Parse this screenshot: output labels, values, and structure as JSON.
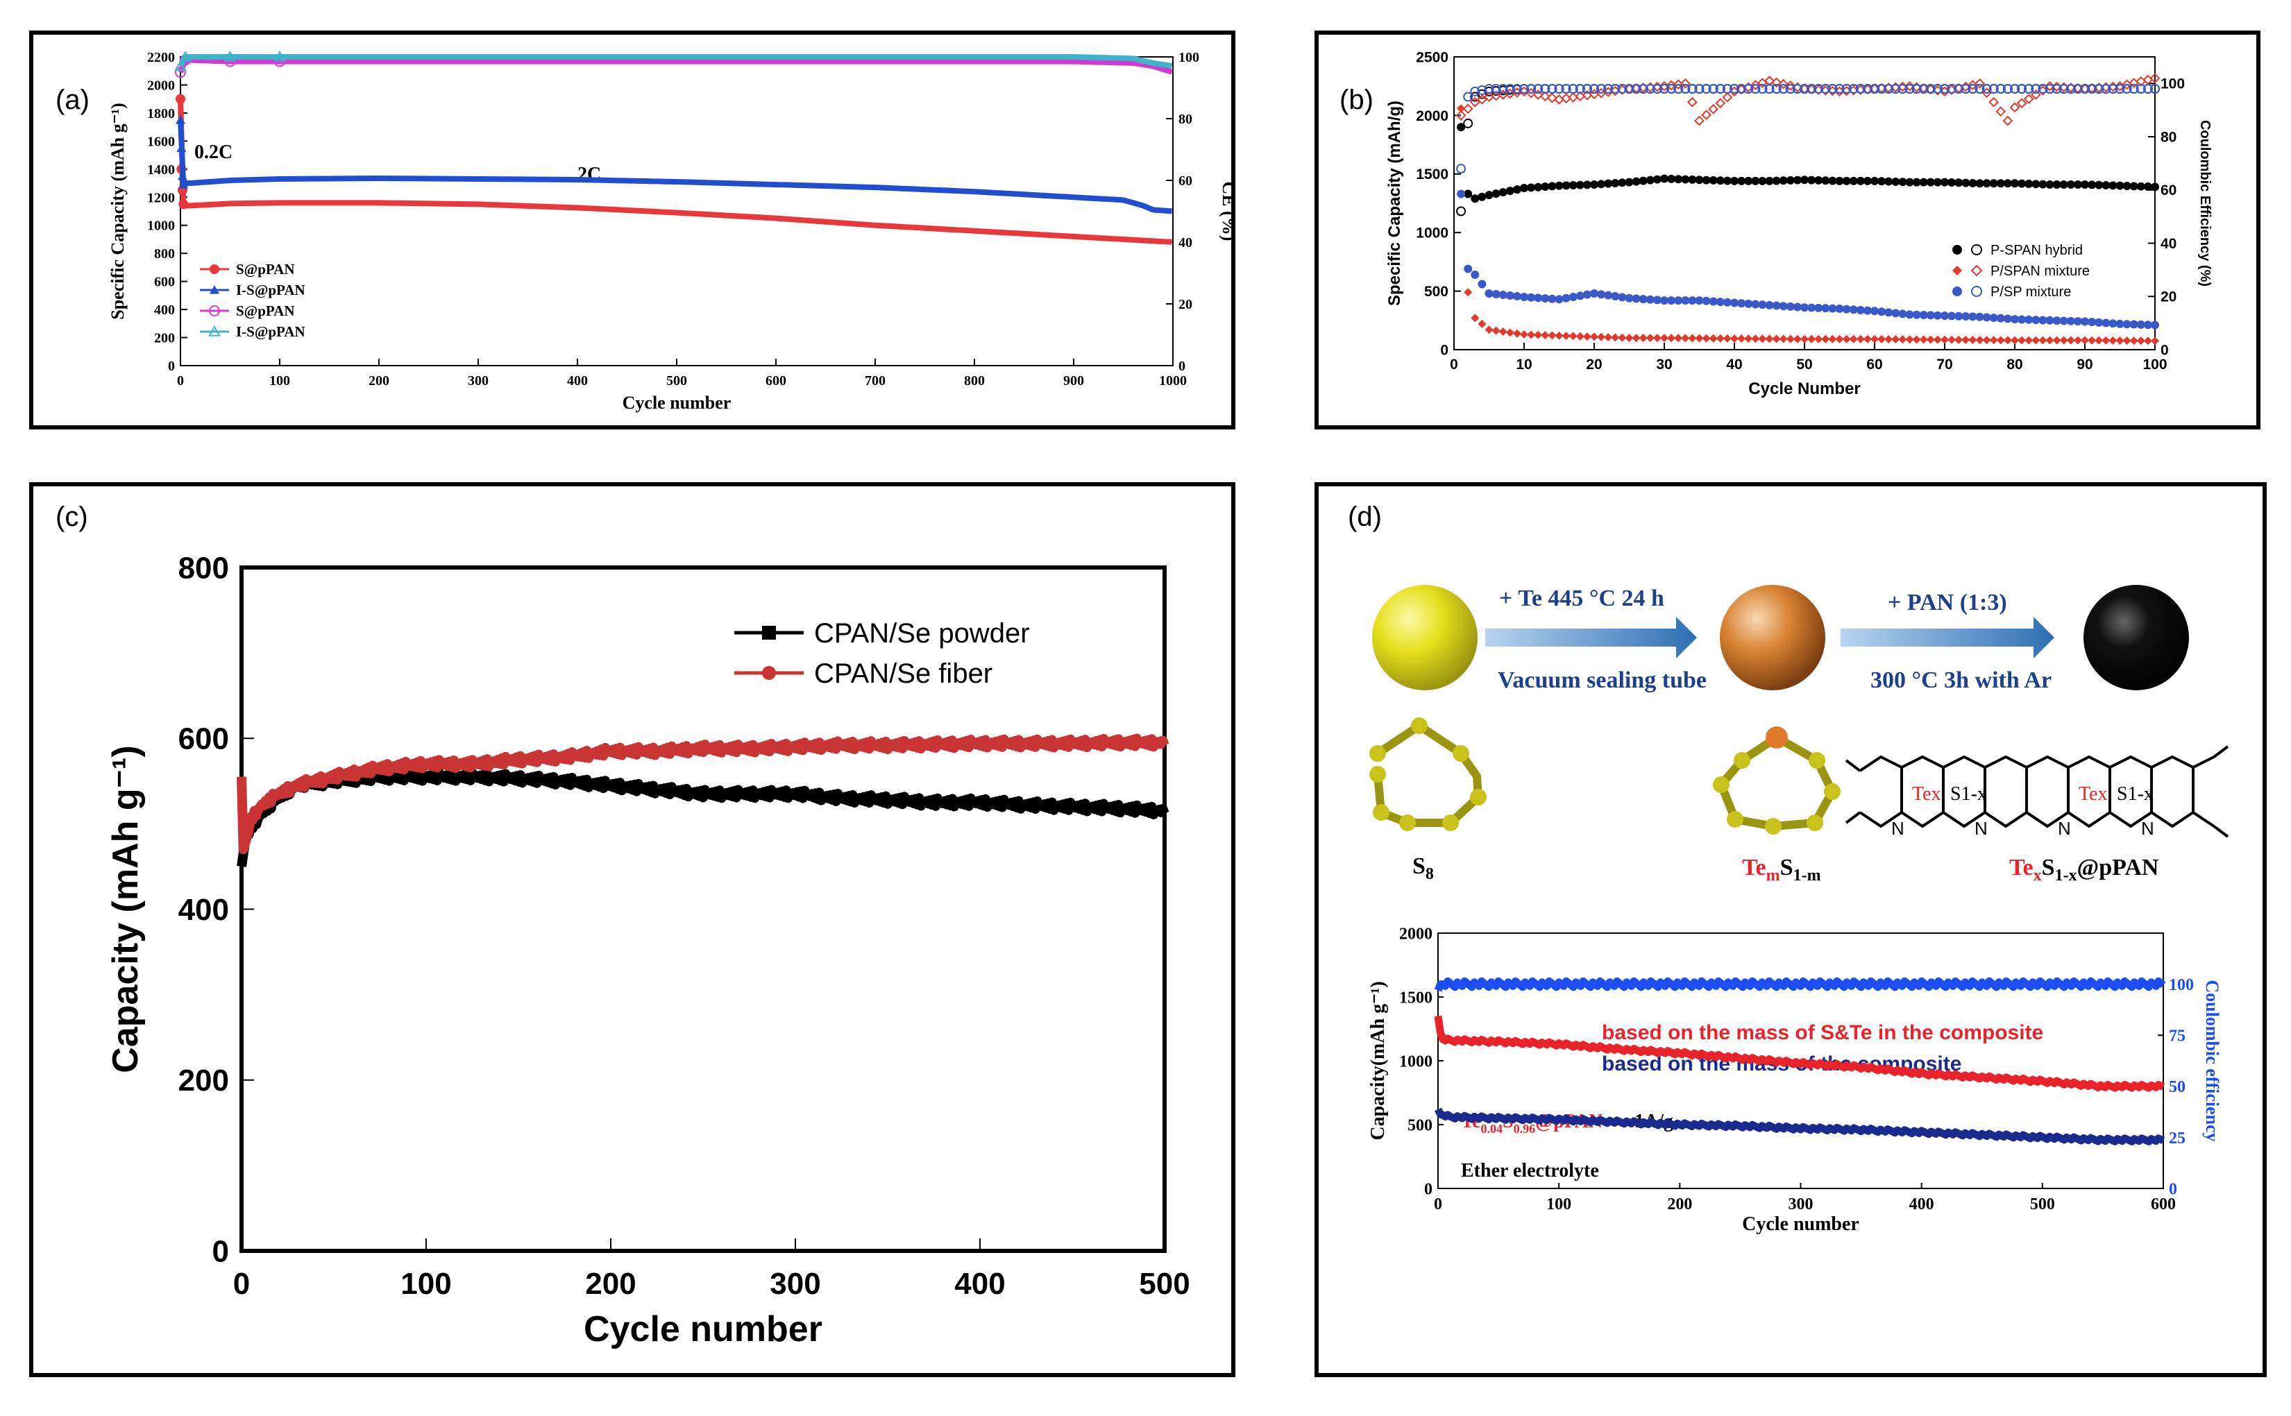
{
  "panels": {
    "a": {
      "tag": "(a)"
    },
    "b": {
      "tag": "(b)"
    },
    "c": {
      "tag": "(c)"
    },
    "d": {
      "tag": "(d)"
    }
  },
  "chart_data": [
    {
      "id": "a",
      "type": "line",
      "xlabel": "Cycle number",
      "ylabel": "Specific Capacity (mAh g⁻¹)",
      "y2label": "CE (%)",
      "xlim": [
        0,
        1000
      ],
      "ylim": [
        0,
        2200
      ],
      "y2lim": [
        0,
        100
      ],
      "xticks": [
        "0",
        "100",
        "200",
        "300",
        "400",
        "500",
        "600",
        "700",
        "800",
        "900",
        "1000"
      ],
      "yticks": [
        "0",
        "200",
        "400",
        "600",
        "800",
        "1000",
        "1200",
        "1400",
        "1600",
        "1800",
        "2000",
        "2200"
      ],
      "y2ticks": [
        "0",
        "20",
        "40",
        "60",
        "80",
        "100"
      ],
      "annotations": [
        "0.2C",
        "2C"
      ],
      "legend_position": "bottom-left",
      "series": [
        {
          "name": "S@pPAN",
          "axis": "left",
          "color": "#e8383b",
          "marker": "circle-filled",
          "x": [
            0,
            1,
            2,
            3,
            5,
            10,
            50,
            100,
            200,
            300,
            400,
            500,
            600,
            700,
            800,
            900,
            950,
            1000
          ],
          "y": [
            1900,
            1400,
            1250,
            1150,
            1140,
            1140,
            1155,
            1160,
            1160,
            1150,
            1125,
            1090,
            1050,
            1000,
            960,
            920,
            900,
            880
          ]
        },
        {
          "name": "I-S@pPAN",
          "axis": "left",
          "color": "#1f4ecf",
          "marker": "triangle-filled",
          "x": [
            0,
            1,
            2,
            3,
            5,
            10,
            50,
            100,
            200,
            300,
            400,
            500,
            600,
            700,
            800,
            900,
            950,
            970,
            980,
            1000
          ],
          "y": [
            1750,
            1550,
            1350,
            1290,
            1300,
            1300,
            1320,
            1330,
            1335,
            1330,
            1325,
            1310,
            1290,
            1270,
            1240,
            1200,
            1180,
            1140,
            1110,
            1100
          ]
        },
        {
          "name": "S@pPAN",
          "axis": "right",
          "color": "#d23ad2",
          "marker": "circle-open",
          "x": [
            0,
            5,
            50,
            100,
            200,
            300,
            400,
            500,
            600,
            700,
            800,
            900,
            960,
            980,
            1000
          ],
          "y": [
            95,
            99,
            98.5,
            98.5,
            98.5,
            98.5,
            98.5,
            98.5,
            98.5,
            98.5,
            98.5,
            98.5,
            98,
            97,
            95
          ]
        },
        {
          "name": "I-S@pPAN",
          "axis": "right",
          "color": "#3fb3c9",
          "marker": "triangle-open",
          "x": [
            0,
            5,
            50,
            100,
            200,
            300,
            400,
            500,
            600,
            700,
            800,
            900,
            960,
            980,
            1000
          ],
          "y": [
            97,
            100,
            100,
            100,
            100,
            100,
            100,
            100,
            100,
            100,
            100,
            100,
            99.5,
            98,
            97
          ]
        }
      ]
    },
    {
      "id": "b",
      "type": "scatter",
      "xlabel": "Cycle Number",
      "ylabel": "Specific Capacity (mAh/g)",
      "y2label": "Coulombic Efficiency (%)",
      "xlim": [
        0,
        100
      ],
      "ylim": [
        0,
        2500
      ],
      "y2lim": [
        0,
        110
      ],
      "xticks": [
        "0",
        "10",
        "20",
        "30",
        "40",
        "50",
        "60",
        "70",
        "80",
        "90",
        "100"
      ],
      "yticks": [
        "0",
        "500",
        "1000",
        "1500",
        "2000",
        "2500"
      ],
      "y2ticks": [
        "0",
        "20",
        "40",
        "60",
        "80",
        "100"
      ],
      "legend_position": "right-middle",
      "series": [
        {
          "name": "P-SPAN hybrid",
          "color": "#000000",
          "capacity": {
            "x": [
              1,
              2,
              3,
              5,
              10,
              15,
              20,
              25,
              30,
              35,
              40,
              45,
              50,
              55,
              60,
              65,
              70,
              75,
              80,
              85,
              90,
              95,
              100
            ],
            "y": [
              1900,
              1330,
              1290,
              1320,
              1380,
              1400,
              1410,
              1430,
              1460,
              1450,
              1440,
              1440,
              1450,
              1440,
              1440,
              1430,
              1430,
              1420,
              1420,
              1410,
              1410,
              1400,
              1390
            ]
          },
          "ce": {
            "x": [
              1,
              2,
              3,
              5,
              10,
              20,
              30,
              40,
              50,
              60,
              70,
              80,
              90,
              100
            ],
            "y": [
              52,
              85,
              95,
              97,
              98,
              98,
              98,
              98,
              98,
              98,
              98,
              98,
              98,
              98
            ]
          }
        },
        {
          "name": "P/SPAN mixture",
          "color": "#e23a2a",
          "capacity": {
            "x": [
              1,
              2,
              3,
              5,
              10,
              15,
              20,
              25,
              30,
              40,
              50,
              60,
              70,
              80,
              90,
              100
            ],
            "y": [
              2060,
              490,
              270,
              170,
              130,
              120,
              110,
              100,
              100,
              95,
              90,
              90,
              85,
              80,
              80,
              75
            ]
          },
          "ce": {
            "x": [
              1,
              3,
              5,
              10,
              15,
              20,
              25,
              30,
              33,
              35,
              40,
              45,
              50,
              55,
              60,
              65,
              70,
              75,
              79,
              80,
              85,
              90,
              95,
              100
            ],
            "y": [
              88,
              93,
              95,
              97,
              94,
              96,
              98,
              99,
              100,
              86,
              97,
              101,
              98,
              97,
              98,
              99,
              97,
              100,
              86,
              91,
              99,
              98,
              99,
              102
            ]
          }
        },
        {
          "name": "P/SP mixture",
          "color": "#3a59c8",
          "capacity": {
            "x": [
              1,
              2,
              3,
              5,
              10,
              15,
              20,
              25,
              30,
              35,
              40,
              45,
              50,
              55,
              60,
              65,
              70,
              75,
              80,
              85,
              90,
              95,
              100
            ],
            "y": [
              1330,
              690,
              640,
              480,
              450,
              430,
              480,
              440,
              420,
              420,
              400,
              380,
              360,
              350,
              330,
              300,
              290,
              280,
              260,
              250,
              240,
              220,
              210
            ]
          },
          "ce": {
            "x": [
              1,
              2,
              3,
              5,
              10,
              20,
              30,
              40,
              50,
              60,
              70,
              80,
              90,
              100
            ],
            "y": [
              68,
              95,
              97,
              98,
              98,
              98,
              98,
              98,
              98,
              98,
              98,
              98,
              98,
              98
            ]
          }
        }
      ]
    },
    {
      "id": "c",
      "type": "line",
      "xlabel": "Cycle number",
      "ylabel": "Capacity (mAh g⁻¹)",
      "xlim": [
        0,
        500
      ],
      "ylim": [
        0,
        800
      ],
      "xticks": [
        "0",
        "100",
        "200",
        "300",
        "400",
        "500"
      ],
      "yticks": [
        "0",
        "200",
        "400",
        "600",
        "800"
      ],
      "legend_position": "top-right",
      "series": [
        {
          "name": "CPAN/Se powder",
          "color": "#000000",
          "marker": "square-filled",
          "x": [
            0,
            2,
            5,
            10,
            20,
            30,
            50,
            75,
            100,
            125,
            150,
            175,
            200,
            225,
            250,
            275,
            300,
            325,
            350,
            375,
            400,
            425,
            450,
            475,
            500
          ],
          "y": [
            450,
            480,
            495,
            510,
            530,
            545,
            550,
            555,
            555,
            555,
            553,
            550,
            545,
            540,
            535,
            535,
            535,
            530,
            528,
            525,
            525,
            522,
            520,
            518,
            515
          ]
        },
        {
          "name": "CPAN/Se fiber",
          "color": "#c93434",
          "marker": "circle-filled",
          "x": [
            0,
            1,
            3,
            5,
            10,
            20,
            30,
            50,
            75,
            100,
            125,
            150,
            175,
            200,
            225,
            250,
            275,
            300,
            325,
            350,
            375,
            400,
            425,
            450,
            475,
            500
          ],
          "y": [
            555,
            470,
            485,
            505,
            520,
            535,
            545,
            555,
            565,
            570,
            570,
            575,
            578,
            585,
            585,
            588,
            588,
            590,
            592,
            592,
            593,
            594,
            594,
            594,
            595,
            595
          ]
        }
      ]
    },
    {
      "id": "d",
      "type": "line",
      "xlabel": "Cycle number",
      "ylabel": "Capacity(mAh g⁻¹)",
      "y2label": "Coulombic efficiency",
      "xlim": [
        0,
        600
      ],
      "ylim": [
        0,
        2000
      ],
      "y2lim": [
        0,
        125
      ],
      "xticks": [
        "0",
        "100",
        "200",
        "300",
        "400",
        "500",
        "600"
      ],
      "yticks": [
        "0",
        "500",
        "1000",
        "1500",
        "2000"
      ],
      "y2ticks": [
        "0",
        "25",
        "50",
        "75",
        "100"
      ],
      "annotations": [
        "based on the mass of S&Te in the composite",
        "based on the mass of the composite",
        "Te0.04S0.96@pPAN",
        "1A/g",
        "Ether electrolyte"
      ],
      "series": [
        {
          "name": "based on the mass of S&Te in the composite",
          "color": "#e8242a",
          "x": [
            0,
            1,
            3,
            10,
            50,
            100,
            150,
            200,
            250,
            300,
            350,
            400,
            450,
            500,
            550,
            600
          ],
          "y": [
            1350,
            1270,
            1170,
            1160,
            1150,
            1130,
            1090,
            1060,
            1020,
            980,
            950,
            900,
            870,
            840,
            800,
            800
          ]
        },
        {
          "name": "based on the mass of the composite",
          "color": "#1b2a8e",
          "x": [
            0,
            2,
            10,
            50,
            100,
            150,
            200,
            250,
            300,
            350,
            400,
            450,
            500,
            550,
            600
          ],
          "y": [
            620,
            580,
            560,
            550,
            540,
            520,
            500,
            490,
            470,
            460,
            440,
            420,
            400,
            380,
            380
          ]
        },
        {
          "name": "Coulombic efficiency",
          "axis": "right",
          "color": "#1a4df2",
          "x": [
            0,
            2,
            5,
            50,
            100,
            200,
            300,
            400,
            500,
            600
          ],
          "y": [
            97,
            100,
            100,
            100,
            100,
            100,
            100,
            100,
            100,
            100
          ]
        }
      ]
    }
  ],
  "panel_d_schematic": {
    "step1_top": "+ Te  445 °C 24 h",
    "step1_bottom": "Vacuum sealing tube",
    "step2_top": "+ PAN (1:3)",
    "step2_bottom": "300 °C 3h with Ar",
    "label_s8": "S8",
    "label_tems": "TemS1-m",
    "label_product": "TexS1-x@pPAN",
    "struct_tex": "Tex",
    "struct_s1x": "S1-x",
    "struct_n": "N",
    "colors": {
      "sulfur": "#e6e01c",
      "telluride": "#d98333",
      "carbon": "#000000",
      "arrow": "#3f83c5",
      "highlight_red": "#e8242a"
    }
  }
}
